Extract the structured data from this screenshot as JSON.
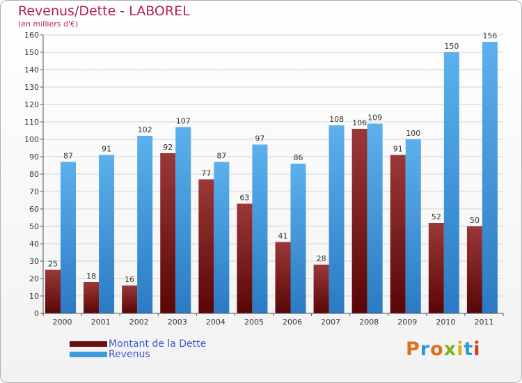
{
  "header": {
    "title": "Revenus/Dette - LABOREL",
    "subtitle": "(en milliers d'€)"
  },
  "logo": {
    "text": "Proxiti",
    "colors": [
      "#e0701a",
      "#2a9bd6",
      "#e0701a",
      "#7ab51d",
      "#d8b21a",
      "#2a9bd6",
      "#d03a1f"
    ]
  },
  "legend": {
    "items": [
      {
        "label": "Montant de la Dette",
        "color": "#6b0f0f"
      },
      {
        "label": "Revenus",
        "color": "#3f9ae0"
      }
    ]
  },
  "chart_data": {
    "type": "bar",
    "categories": [
      "2000",
      "2001",
      "2002",
      "2003",
      "2004",
      "2005",
      "2006",
      "2007",
      "2008",
      "2009",
      "2010",
      "2011"
    ],
    "series": [
      {
        "name": "Montant de la Dette",
        "color": "#6b0f0f",
        "values": [
          25,
          18,
          16,
          92,
          77,
          63,
          41,
          28,
          106,
          91,
          52,
          50
        ]
      },
      {
        "name": "Revenus",
        "color": "#3f9ae0",
        "values": [
          87,
          91,
          102,
          107,
          87,
          97,
          86,
          108,
          109,
          100,
          150,
          156
        ]
      }
    ],
    "yticks": [
      0,
      10,
      20,
      30,
      40,
      50,
      60,
      70,
      80,
      90,
      100,
      110,
      120,
      130,
      140,
      150,
      160
    ],
    "ylim": [
      0,
      160
    ],
    "grid": true,
    "legend_position": "bottom-left"
  }
}
